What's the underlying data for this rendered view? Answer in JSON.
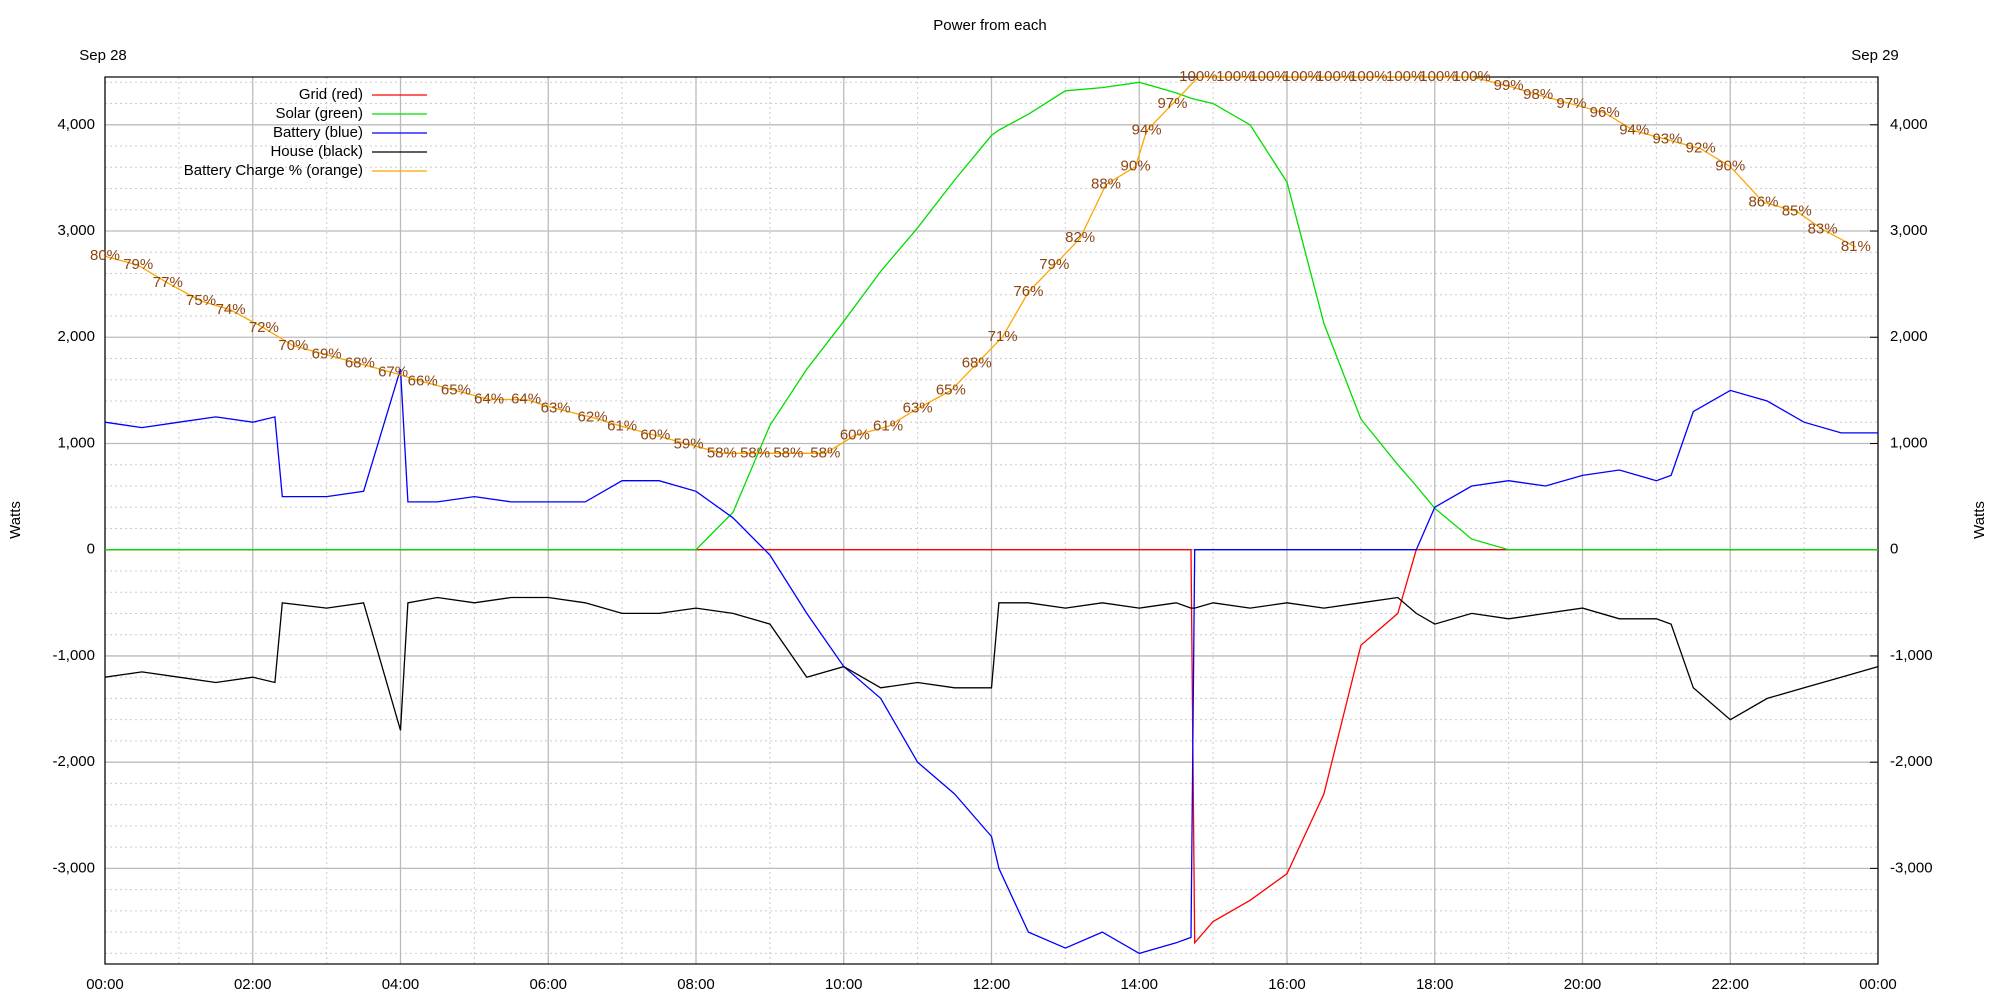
{
  "chart_data": {
    "type": "line",
    "title": "Power from each",
    "date_left": "Sep 28",
    "date_right": "Sep 29",
    "ylabel": "Watts",
    "y2label": "Watts",
    "xlim": [
      0,
      24
    ],
    "xticks": [
      {
        "value": 0,
        "label": "00:00"
      },
      {
        "value": 2,
        "label": "02:00"
      },
      {
        "value": 4,
        "label": "04:00"
      },
      {
        "value": 6,
        "label": "06:00"
      },
      {
        "value": 8,
        "label": "08:00"
      },
      {
        "value": 10,
        "label": "10:00"
      },
      {
        "value": 12,
        "label": "12:00"
      },
      {
        "value": 14,
        "label": "14:00"
      },
      {
        "value": 16,
        "label": "16:00"
      },
      {
        "value": 18,
        "label": "18:00"
      },
      {
        "value": 20,
        "label": "20:00"
      },
      {
        "value": 22,
        "label": "22:00"
      },
      {
        "value": 24,
        "label": "00:00"
      }
    ],
    "xminorticks": [
      1,
      3,
      5,
      7,
      9,
      11,
      13,
      15,
      17,
      19,
      21,
      23
    ],
    "ylim": [
      -3900,
      4450
    ],
    "yticks": [
      {
        "value": -3000,
        "label": "-3,000"
      },
      {
        "value": -2000,
        "label": "-2,000"
      },
      {
        "value": -1000,
        "label": "-1,000"
      },
      0,
      {
        "value": 1000,
        "label": "1,000"
      },
      {
        "value": 2000,
        "label": "2,000"
      },
      {
        "value": 3000,
        "label": "3,000"
      },
      {
        "value": 4000,
        "label": "4,000"
      }
    ],
    "y2lim": [
      -3900,
      4450
    ],
    "y2ticks": [
      {
        "value": -3000,
        "label": "-3,000"
      },
      {
        "value": -2000,
        "label": "-2,000"
      },
      {
        "value": -1000,
        "label": "-1,000"
      },
      0,
      {
        "value": 1000,
        "label": "1,000"
      },
      {
        "value": 2000,
        "label": "2,000"
      },
      {
        "value": 3000,
        "label": "3,000"
      },
      {
        "value": 4000,
        "label": "4,000"
      }
    ],
    "yminorticks": [
      -3800,
      -3600,
      -3400,
      -3200,
      -2800,
      -2600,
      -2400,
      -2200,
      -1800,
      -1600,
      -1400,
      -1200,
      -800,
      -600,
      -400,
      -200,
      200,
      400,
      600,
      800,
      1200,
      1400,
      1600,
      1800,
      2200,
      2400,
      2600,
      2800,
      3200,
      3400,
      3600,
      3800,
      4200,
      4400
    ],
    "y3lim": [
      1,
      100
    ],
    "grid": true,
    "legend": "top-left",
    "x": [
      0,
      0.5,
      1,
      1.5,
      2,
      2.3,
      2.4,
      3,
      3.5,
      4,
      4.1,
      4.5,
      5,
      5.5,
      6,
      6.5,
      7,
      7.5,
      8,
      8.5,
      9,
      9.5,
      10,
      10.5,
      11,
      11.5,
      12,
      12.1,
      12.5,
      13,
      13.5,
      14,
      14.5,
      14.7,
      14.75,
      15,
      15.5,
      16,
      16.5,
      17,
      17.5,
      17.75,
      18,
      18.5,
      19,
      19.5,
      20,
      20.5,
      21,
      21.2,
      21.5,
      22,
      22.5,
      23,
      23.5,
      24
    ],
    "series": [
      {
        "name": "Grid (red)",
        "color": "#ff0000",
        "values": [
          0,
          0,
          0,
          0,
          0,
          0,
          0,
          0,
          0,
          0,
          0,
          0,
          0,
          0,
          0,
          0,
          0,
          0,
          0,
          0,
          0,
          0,
          0,
          0,
          0,
          0,
          0,
          0,
          0,
          0,
          0,
          0,
          0,
          0,
          -3700,
          -3500,
          -3300,
          -3050,
          -2300,
          -900,
          -600,
          0,
          0,
          0,
          0,
          0,
          0,
          0,
          0,
          0,
          0,
          0,
          0,
          0,
          0,
          0
        ]
      },
      {
        "name": "Solar (green)",
        "color": "#00dd00",
        "values": [
          0,
          0,
          0,
          0,
          0,
          0,
          0,
          0,
          0,
          0,
          0,
          0,
          0,
          0,
          0,
          0,
          0,
          0,
          0,
          350,
          1170,
          1700,
          2150,
          2620,
          3030,
          3480,
          3900,
          3950,
          4100,
          4320,
          4350,
          4400,
          4300,
          4250,
          4240,
          4200,
          4000,
          3460,
          2130,
          1230,
          800,
          600,
          390,
          100,
          0,
          0,
          0,
          0,
          0,
          0,
          0,
          0,
          0,
          0,
          0,
          0
        ]
      },
      {
        "name": "Battery (blue)",
        "color": "#0000ff",
        "values": [
          1200,
          1150,
          1200,
          1250,
          1200,
          1250,
          500,
          500,
          550,
          1700,
          450,
          450,
          500,
          450,
          450,
          450,
          650,
          650,
          550,
          300,
          -50,
          -600,
          -1100,
          -1400,
          -2000,
          -2300,
          -2700,
          -3000,
          -3600,
          -3750,
          -3600,
          -3800,
          -3700,
          -3650,
          0,
          0,
          0,
          0,
          0,
          0,
          0,
          0,
          400,
          600,
          650,
          600,
          700,
          750,
          650,
          700,
          1300,
          1500,
          1400,
          1200,
          1100,
          1100
        ]
      },
      {
        "name": "House (black)",
        "color": "#000000",
        "values": [
          -1200,
          -1150,
          -1200,
          -1250,
          -1200,
          -1250,
          -500,
          -550,
          -500,
          -1700,
          -500,
          -450,
          -500,
          -450,
          -450,
          -500,
          -600,
          -600,
          -550,
          -600,
          -700,
          -1200,
          -1100,
          -1300,
          -1250,
          -1300,
          -1300,
          -500,
          -500,
          -550,
          -500,
          -550,
          -500,
          -550,
          -550,
          -500,
          -550,
          -500,
          -550,
          -500,
          -450,
          -600,
          -700,
          -600,
          -650,
          -600,
          -550,
          -650,
          -650,
          -700,
          -1300,
          -1600,
          -1400,
          -1300,
          -1200,
          -1100
        ]
      },
      {
        "name": "Battery Charge % (orange)",
        "color": "#ffa500",
        "label_color": "#8b4513",
        "axis": "y3",
        "x": [
          0,
          0.45,
          0.85,
          1.3,
          1.7,
          2.15,
          2.55,
          3.0,
          3.45,
          3.9,
          4.3,
          4.75,
          5.2,
          5.7,
          6.1,
          6.6,
          7.0,
          7.45,
          7.9,
          8.35,
          8.8,
          9.25,
          9.75,
          10.15,
          10.6,
          11.0,
          11.45,
          11.8,
          12.15,
          12.5,
          12.85,
          13.2,
          13.55,
          13.95,
          14.1,
          14.45,
          14.8,
          15.3,
          15.75,
          16.2,
          16.65,
          17.1,
          17.6,
          18.05,
          18.5,
          19.0,
          19.4,
          19.85,
          20.3,
          20.7,
          21.15,
          21.6,
          22.0,
          22.45,
          22.9,
          23.25,
          23.7
        ],
        "values": [
          80,
          79,
          77,
          75,
          74,
          72,
          70,
          69,
          68,
          67,
          66,
          65,
          64,
          64,
          63,
          62,
          61,
          60,
          59,
          58,
          58,
          58,
          58,
          60,
          61,
          63,
          65,
          68,
          71,
          76,
          79,
          82,
          88,
          90,
          94,
          97,
          100,
          100,
          100,
          100,
          100,
          100,
          100,
          100,
          100,
          99,
          98,
          97,
          96,
          94,
          93,
          92,
          90,
          86,
          85,
          83,
          81
        ],
        "value_labels": [
          "80%",
          "79%",
          "77%",
          "75%",
          "74%",
          "72%",
          "70%",
          "69%",
          "68%",
          "67%",
          "66%",
          "65%",
          "64%",
          "64%",
          "63%",
          "62%",
          "61%",
          "60%",
          "59%",
          "58%",
          "58%",
          "58%",
          "58%",
          "60%",
          "61%",
          "63%",
          "65%",
          "68%",
          "71%",
          "76%",
          "79%",
          "82%",
          "88%",
          "90%",
          "94%",
          "97%",
          "100%",
          "100%",
          "100%",
          "100%",
          "100%",
          "100%",
          "100%",
          "100%",
          "100%",
          "99%",
          "98%",
          "97%",
          "96%",
          "94%",
          "93%",
          "92%",
          "90%",
          "86%",
          "85%",
          "83%",
          "81%"
        ]
      }
    ]
  }
}
